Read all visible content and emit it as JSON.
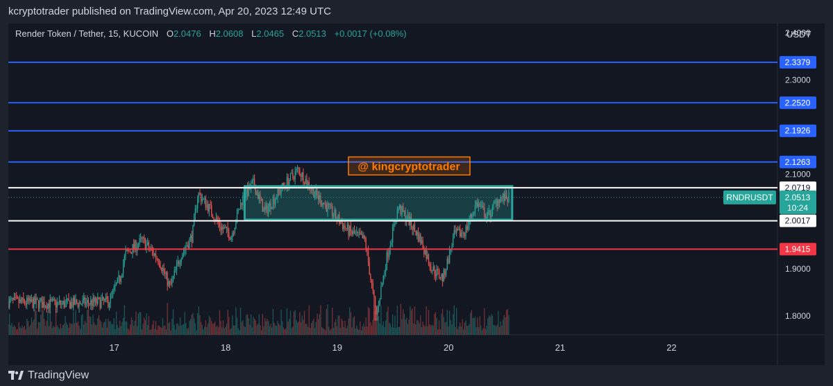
{
  "header": {
    "publisher_line": "kcryptotrader published on TradingView.com, Apr 20, 2023 12:49 UTC"
  },
  "legend": {
    "symbol": "Render Token / Tether, 15, KUCOIN",
    "o_label": "O",
    "o": "2.0476",
    "h_label": "H",
    "h": "2.0608",
    "l_label": "L",
    "l": "2.0465",
    "c_label": "C",
    "c": "2.0513",
    "change": "+0.0017 (+0.08%)"
  },
  "colors": {
    "up": "#26a69a",
    "down": "#ef5350",
    "blue_line": "#2962ff",
    "red_line": "#f23645",
    "white_line": "#ffffff",
    "box": "#26a69a",
    "watermark_bg": "#ff7b00"
  },
  "watermark": "@ kingcryptotrader",
  "footer": {
    "brand": "TradingView"
  },
  "chart_data": {
    "type": "candlestick",
    "symbol": "RNDRUSDT",
    "timeframe": "15",
    "exchange": "KUCOIN",
    "y_axis": {
      "unit": "USDT",
      "range": [
        1.76,
        2.42
      ],
      "ticks": [
        {
          "value": 2.4,
          "label": "2.4000"
        },
        {
          "value": 2.3,
          "label": "2.3000"
        },
        {
          "value": 2.1,
          "label": "2.1000"
        },
        {
          "value": 1.9,
          "label": "1.9000"
        },
        {
          "value": 1.8,
          "label": "1.8000"
        }
      ]
    },
    "x_axis": {
      "ticks": [
        "17",
        "18",
        "19",
        "20",
        "21",
        "22"
      ],
      "range_days": [
        16.05,
        22.95
      ]
    },
    "horizontal_lines": [
      {
        "value": 2.3379,
        "label": "2.3379",
        "color": "blue"
      },
      {
        "value": 2.252,
        "label": "2.2520",
        "color": "blue"
      },
      {
        "value": 2.1926,
        "label": "2.1926",
        "color": "blue"
      },
      {
        "value": 2.1263,
        "label": "2.1263",
        "color": "blue"
      },
      {
        "value": 2.0719,
        "label": "2.0719",
        "color": "white"
      },
      {
        "value": 2.0017,
        "label": "2.0017",
        "color": "white"
      },
      {
        "value": 1.9415,
        "label": "1.9415",
        "color": "red"
      }
    ],
    "zone_box": {
      "x_start_day": 18.17,
      "x_end_day": 20.57,
      "top": 2.075,
      "bottom": 2.004
    },
    "last_price": {
      "tag": "RNDRUSDT",
      "value": "2.0513",
      "countdown": "10:24"
    },
    "price_path": [
      {
        "day": 16.05,
        "price": 1.83
      },
      {
        "day": 16.5,
        "price": 1.825
      },
      {
        "day": 16.95,
        "price": 1.83
      },
      {
        "day": 17.05,
        "price": 1.88
      },
      {
        "day": 17.1,
        "price": 1.93
      },
      {
        "day": 17.25,
        "price": 1.96
      },
      {
        "day": 17.4,
        "price": 1.92
      },
      {
        "day": 17.5,
        "price": 1.86
      },
      {
        "day": 17.6,
        "price": 1.93
      },
      {
        "day": 17.7,
        "price": 1.97
      },
      {
        "day": 17.75,
        "price": 2.06
      },
      {
        "day": 17.85,
        "price": 2.03
      },
      {
        "day": 17.95,
        "price": 1.99
      },
      {
        "day": 18.05,
        "price": 1.97
      },
      {
        "day": 18.15,
        "price": 2.05
      },
      {
        "day": 18.25,
        "price": 2.08
      },
      {
        "day": 18.35,
        "price": 2.02
      },
      {
        "day": 18.5,
        "price": 2.07
      },
      {
        "day": 18.65,
        "price": 2.11
      },
      {
        "day": 18.8,
        "price": 2.06
      },
      {
        "day": 18.95,
        "price": 2.02
      },
      {
        "day": 19.1,
        "price": 1.98
      },
      {
        "day": 19.25,
        "price": 1.96
      },
      {
        "day": 19.35,
        "price": 1.8
      },
      {
        "day": 19.45,
        "price": 1.93
      },
      {
        "day": 19.55,
        "price": 2.03
      },
      {
        "day": 19.65,
        "price": 2.0
      },
      {
        "day": 19.75,
        "price": 1.96
      },
      {
        "day": 19.85,
        "price": 1.9
      },
      {
        "day": 19.95,
        "price": 1.88
      },
      {
        "day": 20.05,
        "price": 1.97
      },
      {
        "day": 20.15,
        "price": 1.98
      },
      {
        "day": 20.25,
        "price": 2.04
      },
      {
        "day": 20.35,
        "price": 2.01
      },
      {
        "day": 20.45,
        "price": 2.05
      },
      {
        "day": 20.55,
        "price": 2.05
      }
    ]
  }
}
